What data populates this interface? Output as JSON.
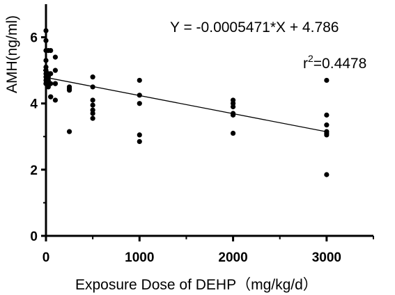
{
  "chart_data": {
    "type": "scatter",
    "title": "",
    "xlabel": "Exposure Dose of DEHP（mg/kg/d）",
    "ylabel": "AMH(ng/ml)",
    "xlim": [
      0,
      3500
    ],
    "ylim": [
      0,
      7
    ],
    "xticks": [
      0,
      1000,
      2000,
      3000
    ],
    "xtick_labels": [
      "0",
      "1000",
      "2000",
      "3000"
    ],
    "yticks": [
      0,
      2,
      4,
      6
    ],
    "ytick_labels": [
      "0",
      "2",
      "4",
      "6"
    ],
    "grid": false,
    "legend": "none",
    "points": {
      "x": [
        0,
        0,
        0,
        0,
        0,
        0,
        0,
        0,
        0,
        0,
        0,
        25,
        25,
        25,
        25,
        25,
        25,
        50,
        50,
        50,
        50,
        50,
        100,
        100,
        100,
        100,
        100,
        250,
        250,
        250,
        250,
        500,
        500,
        500,
        500,
        500,
        500,
        500,
        1000,
        1000,
        1000,
        1000,
        1000,
        2000,
        2000,
        2000,
        2000,
        2000,
        2000,
        3000,
        3000,
        3000,
        3000,
        3000,
        3000,
        3000
      ],
      "y": [
        6.2,
        5.9,
        5.6,
        5.3,
        5.1,
        5.0,
        4.9,
        4.8,
        4.7,
        4.6,
        4.6,
        5.6,
        4.9,
        4.8,
        4.7,
        4.6,
        4.5,
        5.6,
        4.9,
        4.6,
        4.2,
        4.2,
        5.4,
        5.0,
        4.6,
        4.6,
        4.1,
        4.5,
        4.45,
        4.4,
        3.15,
        4.8,
        4.5,
        4.1,
        3.95,
        3.8,
        3.7,
        3.55,
        4.7,
        4.25,
        4.0,
        3.05,
        2.85,
        4.1,
        4.0,
        3.9,
        3.7,
        3.65,
        3.1,
        4.7,
        3.65,
        3.35,
        3.15,
        3.1,
        3.05,
        1.85
      ]
    },
    "regression": {
      "slope": -0.0005471,
      "intercept": 4.786,
      "x_range": [
        0,
        3000
      ],
      "equation": "Y = -0.0005471*X + 4.786",
      "r2_prefix": "r",
      "r2_sup": "2",
      "r2_value": "=0.4478"
    },
    "colors": {
      "points": "#000000",
      "line": "#000000",
      "axes": "#000000"
    }
  }
}
